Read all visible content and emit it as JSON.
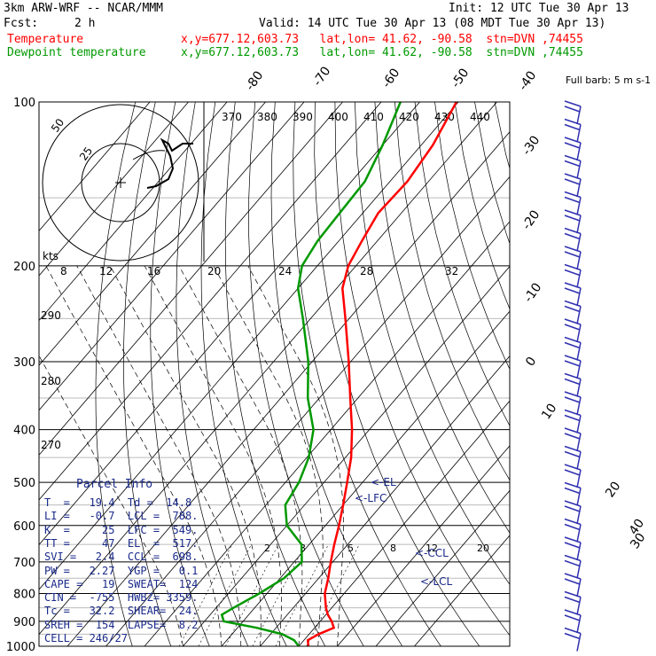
{
  "header": {
    "model": "3km ARW-WRF -- NCAR/MMM",
    "init": "Init: 12 UTC Tue 30 Apr 13",
    "fcst_label": "Fcst:",
    "fcst_value": "2 h",
    "valid": "Valid: 14 UTC Tue 30 Apr 13 (08 MDT Tue 30 Apr 13)",
    "temperature_label": "Temperature",
    "temperature_loc": "x,y=677.12,603.73   lat,lon= 41.62, -90.58  stn=DVN ,74455",
    "dewpoint_label": "Dewpoint temperature",
    "dewpoint_loc": "x,y=677.12,603.73   lat,lon= 41.62, -90.58  stn=DVN ,74455"
  },
  "colors": {
    "temperature": "#ff0000",
    "dewpoint": "#009900",
    "parcel": "#1a2a8a",
    "barbs": "#3030b0"
  },
  "parcel_info": {
    "title": "Parcel Info",
    "rows": [
      "T  =   19.4  Td =  14.8",
      "LI =   -0.7  LCL =  788.",
      "K  =     25  LFC =  549.",
      "TT =     47  EL  =  517.",
      "SVI =   2.4  CCL =  698.",
      "PW =   2.27  YGP =   0.1",
      "CAPE =   19  SWEAT=  124",
      "CIN =  -755  HWBZ= 3359.",
      "Tc =   32.2  SHEAR=  24.",
      "SREH =  154  LAPSE=  8.2",
      "CELL = 246/27"
    ]
  },
  "chart_data": {
    "type": "line",
    "chart_kind": "skew-T log-P",
    "y_axis": {
      "label": "pressure (hPa)",
      "scale": "log",
      "range": [
        1000,
        100
      ],
      "ticks": [
        100,
        200,
        300,
        400,
        500,
        600,
        700,
        800,
        900,
        1000
      ]
    },
    "isotherm_labels": [
      "-80",
      "-70",
      "-60",
      "-50",
      "-40",
      "-30",
      "-20",
      "-10",
      "0",
      "10",
      "20",
      "30",
      "40"
    ],
    "theta_e_labels": [
      "370",
      "380",
      "390",
      "400",
      "410",
      "420",
      "430",
      "440"
    ],
    "hodograph_speed_labels": [
      "8",
      "12",
      "16",
      "20",
      "24",
      "28",
      "32"
    ],
    "hodograph_unit": "kts",
    "hodograph_ring_labels": [
      "50",
      "25"
    ],
    "mixing_ratio_labels": [
      "2",
      "3",
      "5",
      "8",
      "12",
      "20"
    ],
    "left_axis_labels": [
      "290",
      "280",
      "270"
    ],
    "barb_legend": "Full barb: 5 m s-1",
    "parcel_markers": [
      "EL",
      "LFC",
      "CCL",
      "LCL"
    ],
    "series": [
      {
        "name": "Temperature",
        "color": "#ff0000",
        "points": [
          {
            "p": 1000,
            "t": 22.5
          },
          {
            "p": 975,
            "t": 21.0
          },
          {
            "p": 950,
            "t": 22.5
          },
          {
            "p": 925,
            "t": 25.0
          },
          {
            "p": 900,
            "t": 23.0
          },
          {
            "p": 875,
            "t": 20.5
          },
          {
            "p": 850,
            "t": 18.5
          },
          {
            "p": 800,
            "t": 15.0
          },
          {
            "p": 750,
            "t": 12.5
          },
          {
            "p": 700,
            "t": 9.5
          },
          {
            "p": 650,
            "t": 6.5
          },
          {
            "p": 600,
            "t": 3.5
          },
          {
            "p": 550,
            "t": 0.0
          },
          {
            "p": 500,
            "t": -4.0
          },
          {
            "p": 450,
            "t": -8.5
          },
          {
            "p": 400,
            "t": -14.5
          },
          {
            "p": 350,
            "t": -22.0
          },
          {
            "p": 300,
            "t": -30.5
          },
          {
            "p": 250,
            "t": -41.0
          },
          {
            "p": 220,
            "t": -48.5
          },
          {
            "p": 200,
            "t": -52.0
          },
          {
            "p": 180,
            "t": -54.0
          },
          {
            "p": 160,
            "t": -56.0
          },
          {
            "p": 140,
            "t": -55.5
          },
          {
            "p": 120,
            "t": -57.0
          },
          {
            "p": 100,
            "t": -60.5
          }
        ]
      },
      {
        "name": "Dewpoint temperature",
        "color": "#009900",
        "points": [
          {
            "p": 1000,
            "t": 20.0
          },
          {
            "p": 975,
            "t": 17.5
          },
          {
            "p": 950,
            "t": 13.0
          },
          {
            "p": 925,
            "t": 5.0
          },
          {
            "p": 900,
            "t": -5.0
          },
          {
            "p": 875,
            "t": -7.0
          },
          {
            "p": 850,
            "t": -5.5
          },
          {
            "p": 800,
            "t": -2.0
          },
          {
            "p": 750,
            "t": 1.0
          },
          {
            "p": 700,
            "t": 2.0
          },
          {
            "p": 650,
            "t": -2.0
          },
          {
            "p": 600,
            "t": -10.0
          },
          {
            "p": 550,
            "t": -15.0
          },
          {
            "p": 500,
            "t": -16.5
          },
          {
            "p": 450,
            "t": -19.5
          },
          {
            "p": 400,
            "t": -24.5
          },
          {
            "p": 350,
            "t": -33.0
          },
          {
            "p": 300,
            "t": -41.0
          },
          {
            "p": 250,
            "t": -52.0
          },
          {
            "p": 220,
            "t": -60.0
          },
          {
            "p": 200,
            "t": -64.0
          },
          {
            "p": 180,
            "t": -65.5
          },
          {
            "p": 160,
            "t": -66.0
          },
          {
            "p": 140,
            "t": -66.5
          },
          {
            "p": 120,
            "t": -70.0
          },
          {
            "p": 100,
            "t": -75.0
          }
        ]
      }
    ]
  }
}
